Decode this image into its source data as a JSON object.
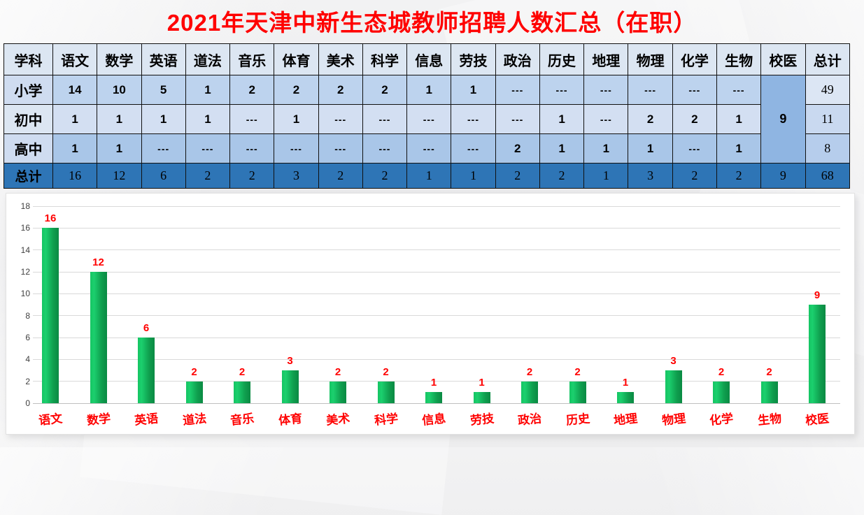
{
  "title": "2021年天津中新生态城教师招聘人数汇总（在职）",
  "table": {
    "columns": [
      "学科",
      "语文",
      "数学",
      "英语",
      "道法",
      "音乐",
      "体育",
      "美术",
      "科学",
      "信息",
      "劳技",
      "政治",
      "历史",
      "地理",
      "物理",
      "化学",
      "生物",
      "校医",
      "总计"
    ],
    "rows": [
      {
        "label": "小学",
        "cells": [
          "14",
          "10",
          "5",
          "1",
          "2",
          "2",
          "2",
          "2",
          "1",
          "1",
          "---",
          "---",
          "---",
          "---",
          "---",
          "---"
        ],
        "total": "49"
      },
      {
        "label": "初中",
        "cells": [
          "1",
          "1",
          "1",
          "1",
          "---",
          "1",
          "---",
          "---",
          "---",
          "---",
          "---",
          "1",
          "---",
          "2",
          "2",
          "1"
        ],
        "total": "11"
      },
      {
        "label": "高中",
        "cells": [
          "1",
          "1",
          "---",
          "---",
          "---",
          "---",
          "---",
          "---",
          "---",
          "---",
          "2",
          "1",
          "1",
          "1",
          "---",
          "1"
        ],
        "total": "8"
      }
    ],
    "merged_school_doctor_value": "9",
    "total_row": {
      "label": "总计",
      "cells": [
        "16",
        "12",
        "6",
        "2",
        "2",
        "3",
        "2",
        "2",
        "1",
        "1",
        "2",
        "2",
        "1",
        "3",
        "2",
        "2",
        "9"
      ],
      "total": "68"
    }
  },
  "chart_data": {
    "type": "bar",
    "title": "",
    "categories": [
      "语文",
      "数学",
      "英语",
      "道法",
      "音乐",
      "体育",
      "美术",
      "科学",
      "信息",
      "劳技",
      "政治",
      "历史",
      "地理",
      "物理",
      "化学",
      "生物",
      "校医"
    ],
    "values": [
      16,
      12,
      6,
      2,
      2,
      3,
      2,
      2,
      1,
      1,
      2,
      2,
      1,
      3,
      2,
      2,
      9
    ],
    "xlabel": "",
    "ylabel": "",
    "ylim": [
      0,
      18
    ],
    "ytick_step": 2,
    "grid": true,
    "legend": "none",
    "bar_color_light": "#15c463",
    "bar_color_dark": "#0a8a43",
    "value_label_color": "#ff0000",
    "category_label_color": "#ff0000"
  },
  "colors": {
    "title_red": "#ff0000",
    "table_header_bg": "#dce6f2",
    "row_primary_bg": "#bdd3ee",
    "row_junior_bg": "#d3dff2",
    "row_senior_bg": "#a9c6e8",
    "total_row_bg": "#2e75b6",
    "merged_cell_bg": "#8fb5e2",
    "gridline": "#d9d9d9",
    "panel_bg": "#ffffff"
  }
}
